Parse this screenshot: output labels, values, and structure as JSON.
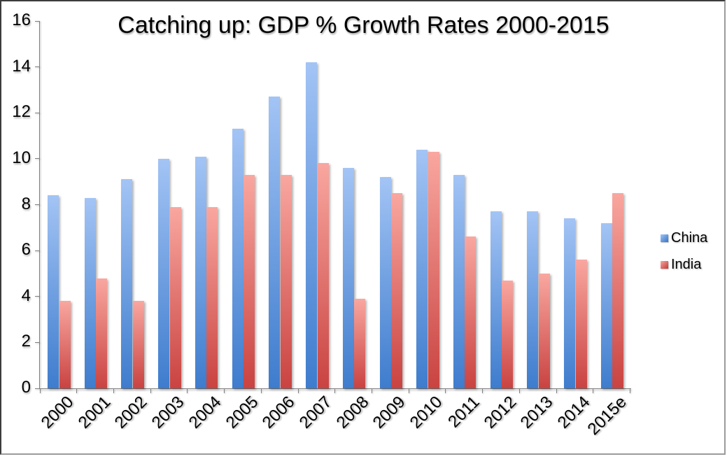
{
  "chart_data": {
    "type": "bar",
    "title": "Catching up: GDP % Growth Rates 2000-2015",
    "categories": [
      "2000",
      "2001",
      "2002",
      "2003",
      "2004",
      "2005",
      "2006",
      "2007",
      "2008",
      "2009",
      "2010",
      "2011",
      "2012",
      "2013",
      "2014",
      "2015e"
    ],
    "series": [
      {
        "name": "China",
        "values": [
          8.4,
          8.3,
          9.1,
          10.0,
          10.1,
          11.3,
          12.7,
          14.2,
          9.6,
          9.2,
          10.4,
          9.3,
          7.7,
          7.7,
          7.4,
          7.2
        ],
        "color_top": "#a3c4f5",
        "color_bottom": "#3e7ccd"
      },
      {
        "name": "India",
        "values": [
          3.8,
          4.8,
          3.8,
          7.9,
          7.9,
          9.3,
          9.3,
          9.8,
          3.9,
          8.5,
          10.3,
          6.6,
          4.7,
          5.0,
          5.6,
          8.5
        ],
        "color_top": "#f9a7a0",
        "color_bottom": "#c94341"
      }
    ],
    "xlabel": "",
    "ylabel": "",
    "ylim": [
      0,
      16
    ],
    "yticks": [
      0,
      2,
      4,
      6,
      8,
      10,
      12,
      14,
      16
    ],
    "grid": false,
    "legend_position": "right",
    "x_tick_rotation": -45
  },
  "colors": {
    "axis": "#808080",
    "text": "#000000",
    "background": "#ffffff",
    "frame_dark": "#3c3c3c",
    "frame_light": "#9b9b9b"
  }
}
